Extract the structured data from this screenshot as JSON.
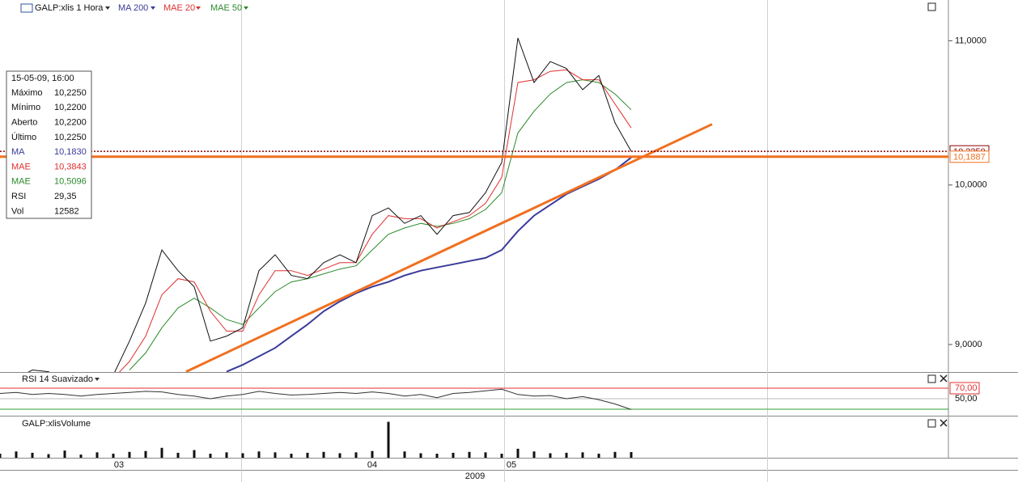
{
  "info_box": {
    "date": "15-05-09, 16:00",
    "rows": [
      {
        "label": "Máximo",
        "value": "10,2250"
      },
      {
        "label": "Mínimo",
        "value": "10,2200"
      },
      {
        "label": "Aberto",
        "value": "10,2200"
      },
      {
        "label": "Último",
        "value": "10,2250"
      },
      {
        "label": "MA",
        "value": "10,1830",
        "color": "#3a3a9a"
      },
      {
        "label": "MAE",
        "value": "10,3843",
        "color": "#e03030"
      },
      {
        "label": "MAE",
        "value": "10,5096",
        "color": "#2a8a2a"
      },
      {
        "label": "RSI",
        "value": "29,35"
      },
      {
        "label": "Vol",
        "value": "12582"
      }
    ]
  },
  "chart_data": {
    "type": "line",
    "x": [
      0,
      1,
      2,
      3,
      4,
      5,
      6,
      7,
      8,
      9,
      10,
      11,
      12,
      13,
      14,
      15,
      16,
      17,
      18,
      19,
      20,
      21,
      22,
      23,
      24,
      25,
      26,
      27,
      28,
      29,
      30,
      31,
      32,
      33,
      34,
      35,
      36,
      37,
      38,
      39
    ],
    "xlim": [
      0,
      58.6
    ],
    "xticks": [
      {
        "value": 7.35,
        "label": "03"
      },
      {
        "value": 23,
        "label": "04"
      },
      {
        "value": 31.6,
        "label": "05"
      }
    ],
    "xgrid": [
      14.9,
      31.15,
      47.4
    ],
    "xlabel": "2009",
    "ylim": [
      8.838,
      11.3
    ],
    "log_scale": true,
    "grid": true,
    "yticks": [
      {
        "value": 9,
        "label": "9,0000"
      },
      {
        "value": 10,
        "label": "10,0000"
      },
      {
        "value": 11,
        "label": "11,0000"
      }
    ],
    "series": [
      {
        "name": "GALP:xlis 1 Hora",
        "color": "#111111",
        "values": [
          8.78,
          8.8,
          8.85,
          8.84,
          8.75,
          8.72,
          8.78,
          8.82,
          9.02,
          9.25,
          9.58,
          9.45,
          9.35,
          9.02,
          9.05,
          9.1,
          9.45,
          9.55,
          9.42,
          9.4,
          9.5,
          9.55,
          9.5,
          9.8,
          9.85,
          9.75,
          9.8,
          9.68,
          9.8,
          9.82,
          9.95,
          10.15,
          11.02,
          10.7,
          10.85,
          10.8,
          10.65,
          10.75,
          10.42,
          10.225
        ]
      },
      {
        "name": "MA 200",
        "color": "#3a3a9a",
        "values": [
          null,
          null,
          null,
          null,
          null,
          null,
          null,
          null,
          null,
          null,
          null,
          null,
          null,
          null,
          8.84,
          8.88,
          8.93,
          8.98,
          9.05,
          9.12,
          9.2,
          9.26,
          9.31,
          9.35,
          9.38,
          9.42,
          9.45,
          9.47,
          9.49,
          9.51,
          9.53,
          9.58,
          9.7,
          9.8,
          9.87,
          9.94,
          9.99,
          10.04,
          10.1,
          10.183
        ]
      },
      {
        "name": "MAE 20",
        "color": "#e03030",
        "values": [
          null,
          null,
          null,
          null,
          null,
          null,
          null,
          8.8,
          8.9,
          9.05,
          9.3,
          9.4,
          9.38,
          9.2,
          9.08,
          9.08,
          9.3,
          9.45,
          9.45,
          9.42,
          9.46,
          9.5,
          9.5,
          9.68,
          9.8,
          9.78,
          9.78,
          9.72,
          9.76,
          9.8,
          9.88,
          10.05,
          10.7,
          10.72,
          10.78,
          10.79,
          10.72,
          10.72,
          10.55,
          10.3843
        ]
      },
      {
        "name": "MAE 50",
        "color": "#2a8a2a",
        "values": [
          null,
          null,
          null,
          null,
          null,
          null,
          null,
          null,
          8.85,
          8.95,
          9.1,
          9.22,
          9.28,
          9.22,
          9.15,
          9.12,
          9.22,
          9.32,
          9.38,
          9.4,
          9.43,
          9.46,
          9.48,
          9.58,
          9.68,
          9.72,
          9.75,
          9.73,
          9.75,
          9.78,
          9.84,
          9.95,
          10.35,
          10.5,
          10.62,
          10.7,
          10.72,
          10.7,
          10.62,
          10.5096
        ]
      }
    ],
    "lines": [
      {
        "value": 10.225,
        "label": "10,2250",
        "color": "#8b0000",
        "style": "dotted"
      },
      {
        "value": 10.1887,
        "label": "10,1887",
        "color": "#f07020",
        "style": "solid"
      }
    ],
    "trendline": {
      "x": [
        11.5,
        44
      ],
      "y": [
        8.84,
        10.41
      ],
      "color": "#f07020"
    }
  },
  "rsi": {
    "title": "RSI 14 Suavizado",
    "ylim": [
      17.7,
      97.7
    ],
    "color": "#333333",
    "levels": [
      {
        "value": 70,
        "label": "70,00",
        "color": "#e03030"
      },
      {
        "value": 50,
        "label": "50,00",
        "color": "#bbbbbb"
      },
      {
        "value": 30,
        "color": "#30a030"
      }
    ],
    "values": [
      60,
      62,
      58,
      60,
      58,
      55,
      58,
      60,
      62,
      64,
      63,
      58,
      55,
      50,
      55,
      58,
      64,
      60,
      57,
      58,
      60,
      62,
      60,
      63,
      60,
      55,
      58,
      52,
      60,
      62,
      65,
      68,
      58,
      55,
      56,
      50,
      54,
      48,
      40,
      29.35
    ]
  },
  "volume": {
    "title": "GALP:xlisVolume",
    "ylim": [
      0,
      90000
    ],
    "color": "#111111",
    "values": [
      9000,
      14000,
      11000,
      8000,
      16000,
      7000,
      12000,
      9000,
      13000,
      15000,
      22000,
      11000,
      17000,
      9000,
      12000,
      10000,
      14000,
      12000,
      9000,
      11000,
      13000,
      10000,
      12000,
      15000,
      80000,
      14000,
      10000,
      9000,
      11000,
      13000,
      12000,
      9000,
      20000,
      14000,
      10000,
      11000,
      12000,
      9000,
      13000,
      12582
    ]
  }
}
